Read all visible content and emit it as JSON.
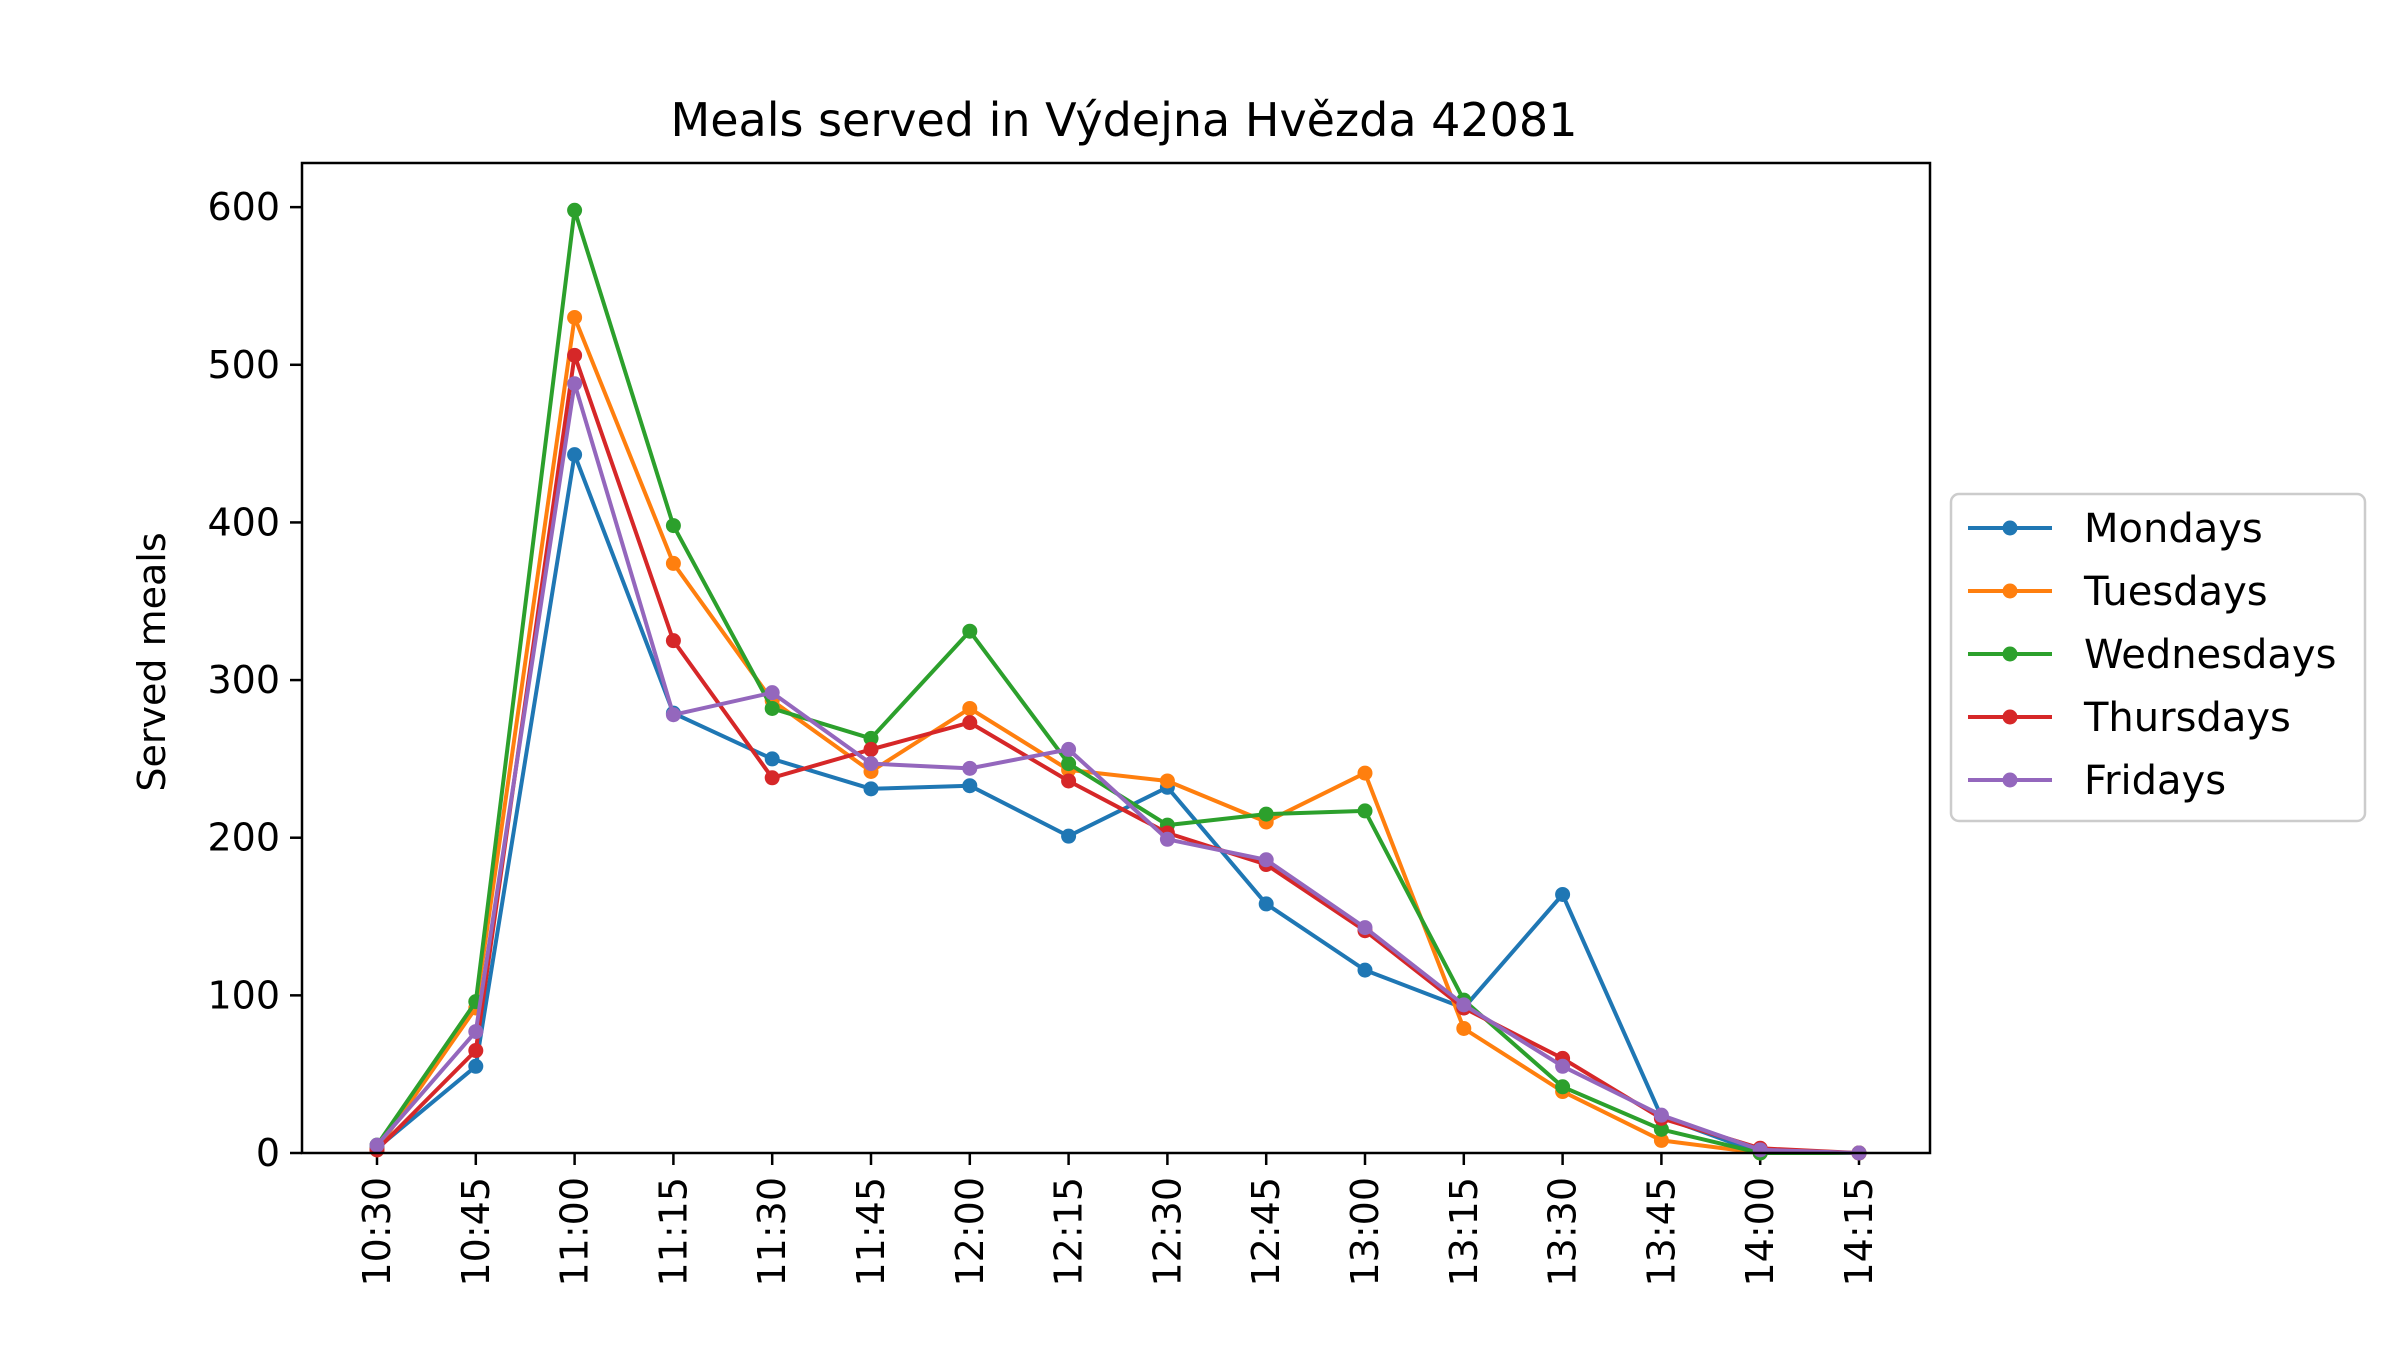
{
  "chart_data": {
    "type": "line",
    "title": "Meals served in Výdejna Hvězda 42081",
    "xlabel": "",
    "ylabel": "Served meals",
    "categories": [
      "10:30",
      "10:45",
      "11:00",
      "11:15",
      "11:30",
      "11:45",
      "12:00",
      "12:15",
      "12:30",
      "12:45",
      "13:00",
      "13:15",
      "13:30",
      "13:45",
      "14:00",
      "14:15"
    ],
    "yticks": [
      0,
      100,
      200,
      300,
      400,
      500,
      600
    ],
    "ylim": [
      0,
      628
    ],
    "grid": false,
    "legend_position": "right",
    "series": [
      {
        "name": "Mondays",
        "color": "#1f77b4",
        "values": [
          3,
          55,
          443,
          279,
          250,
          231,
          233,
          201,
          232,
          158,
          116,
          92,
          164,
          23,
          0,
          0
        ]
      },
      {
        "name": "Tuesdays",
        "color": "#ff7f0e",
        "values": [
          2,
          92,
          530,
          374,
          287,
          242,
          282,
          243,
          236,
          210,
          241,
          79,
          39,
          8,
          0,
          0
        ]
      },
      {
        "name": "Wednesdays",
        "color": "#2ca02c",
        "values": [
          5,
          96,
          598,
          398,
          282,
          263,
          331,
          247,
          208,
          215,
          217,
          97,
          42,
          15,
          0,
          0
        ]
      },
      {
        "name": "Thursdays",
        "color": "#d62728",
        "values": [
          2,
          65,
          506,
          325,
          238,
          256,
          273,
          236,
          203,
          183,
          141,
          92,
          60,
          22,
          3,
          0
        ]
      },
      {
        "name": "Fridays",
        "color": "#9467bd",
        "values": [
          5,
          77,
          488,
          278,
          292,
          247,
          244,
          256,
          199,
          186,
          143,
          94,
          55,
          24,
          2,
          0
        ]
      }
    ]
  }
}
